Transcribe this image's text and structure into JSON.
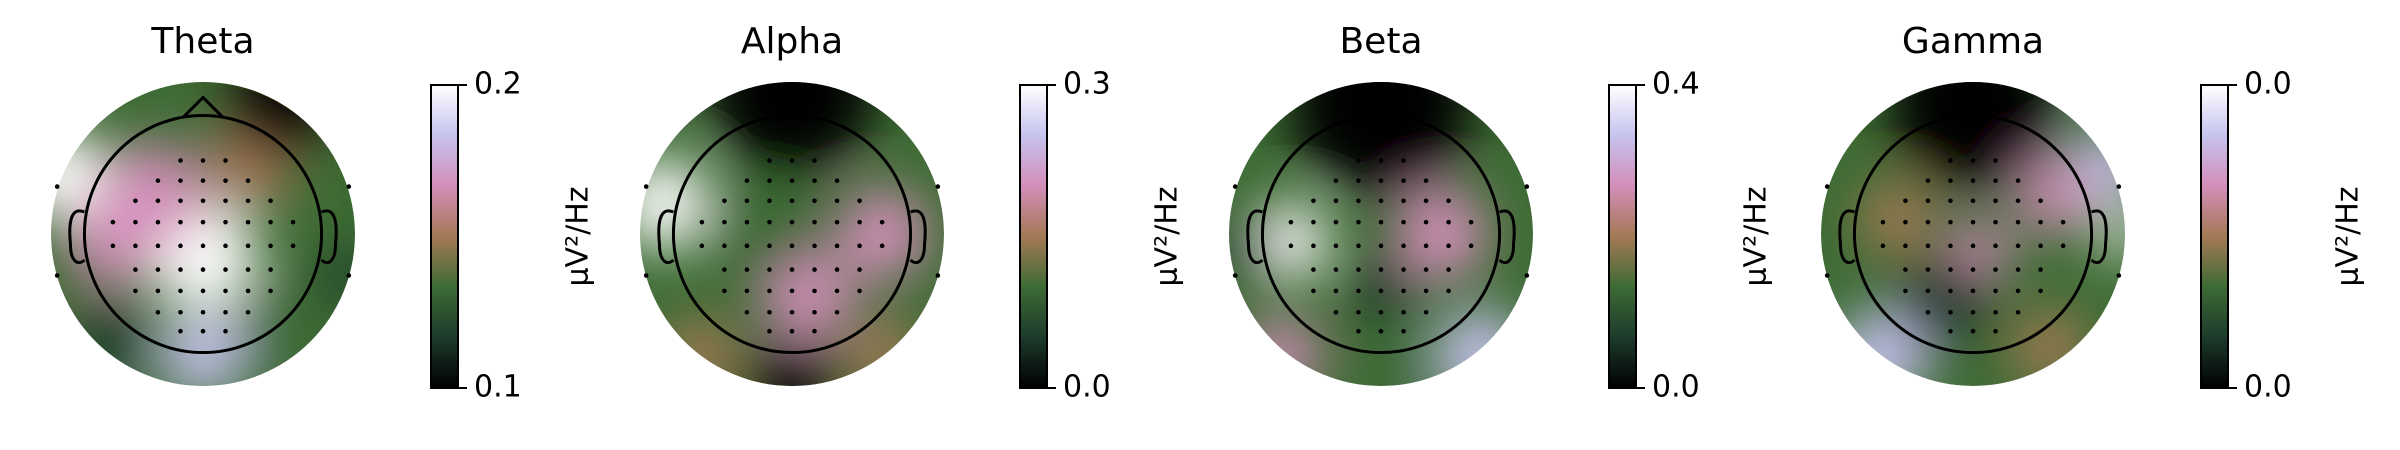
{
  "chart_data": [
    {
      "type": "topomap",
      "title": "Theta",
      "colorbar_label": "µV²/Hz",
      "ylim": [
        0.1,
        0.2
      ],
      "yticks": [
        0.1,
        0.2
      ],
      "colormap": [
        "#000000",
        "#1d3b2c",
        "#3d6b34",
        "#a47955",
        "#d38eb9",
        "#c6c3ee",
        "#ffffff"
      ]
    },
    {
      "type": "topomap",
      "title": "Alpha",
      "colorbar_label": "µV²/Hz",
      "ylim": [
        0,
        0.3
      ],
      "yticks": [
        {
          "value": 0,
          "label": "0.0"
        },
        0.3
      ],
      "colormap": [
        "#000000",
        "#1d3b2c",
        "#3d6b34",
        "#a47955",
        "#d38eb9",
        "#c6c3ee",
        "#ffffff"
      ]
    },
    {
      "type": "topomap",
      "title": "Beta",
      "colorbar_label": "µV²/Hz",
      "ylim": [
        0,
        0.4
      ],
      "yticks": [
        {
          "value": 0,
          "label": "0.0"
        },
        0.4
      ],
      "colormap": [
        "#000000",
        "#1d3b2c",
        "#3d6b34",
        "#a47955",
        "#d38eb9",
        "#c6c3ee",
        "#ffffff"
      ]
    },
    {
      "type": "topomap",
      "title": "Gamma",
      "colorbar_label": "µV²/Hz",
      "ylim": [
        0.002,
        0.04
      ],
      "yticks": [
        {
          "value": 0.002,
          "label": "0.0"
        },
        {
          "value": 0.04,
          "label": "0.0"
        }
      ],
      "colormap": [
        "#000000",
        "#1d3b2c",
        "#3d6b34",
        "#a47955",
        "#d38eb9",
        "#c6c3ee",
        "#ffffff"
      ]
    }
  ]
}
